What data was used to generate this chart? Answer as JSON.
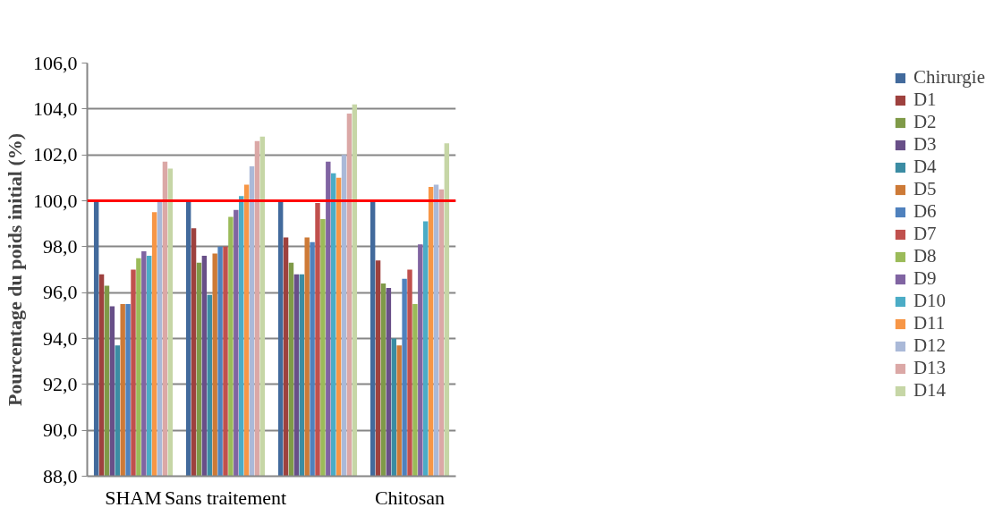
{
  "chart_data": {
    "type": "bar",
    "ylabel": "Pourcentage du poids initial (%)",
    "categories": [
      "SHAM",
      "Sans traitement",
      null,
      "Chitosan"
    ],
    "series": [
      {
        "name": "Chirurgie",
        "color": "#426a9c",
        "values": [
          100.0,
          100.0,
          100.0,
          100.0
        ]
      },
      {
        "name": "D1",
        "color": "#9e413e",
        "values": [
          96.8,
          98.8,
          98.4,
          97.4
        ]
      },
      {
        "name": "D2",
        "color": "#7f9a48",
        "values": [
          96.3,
          97.3,
          97.3,
          96.4
        ]
      },
      {
        "name": "D3",
        "color": "#684f88",
        "values": [
          95.4,
          97.6,
          96.8,
          96.2
        ]
      },
      {
        "name": "D4",
        "color": "#3b8ca3",
        "values": [
          93.7,
          95.9,
          96.8,
          94.0
        ]
      },
      {
        "name": "D5",
        "color": "#cd7a37",
        "values": [
          95.5,
          97.7,
          98.4,
          93.7
        ]
      },
      {
        "name": "D6",
        "color": "#4f81bd",
        "values": [
          95.5,
          98.0,
          98.2,
          96.6
        ]
      },
      {
        "name": "D7",
        "color": "#c0504d",
        "values": [
          97.0,
          98.0,
          99.9,
          97.0
        ]
      },
      {
        "name": "D8",
        "color": "#9bbb59",
        "values": [
          97.5,
          99.3,
          99.2,
          95.5
        ]
      },
      {
        "name": "D9",
        "color": "#8064a2",
        "values": [
          97.8,
          99.6,
          101.7,
          98.1
        ]
      },
      {
        "name": "D10",
        "color": "#4bacc6",
        "values": [
          97.6,
          100.2,
          101.2,
          99.1
        ]
      },
      {
        "name": "D11",
        "color": "#f79646",
        "values": [
          99.5,
          100.7,
          101.0,
          100.6
        ]
      },
      {
        "name": "D12",
        "color": "#aab9d8",
        "values": [
          100.0,
          101.5,
          102.0,
          100.7
        ]
      },
      {
        "name": "D13",
        "color": "#dba8a6",
        "values": [
          101.7,
          102.6,
          103.8,
          100.5
        ]
      },
      {
        "name": "D14",
        "color": "#c6d6a6",
        "values": [
          101.4,
          102.8,
          104.2,
          102.5
        ]
      }
    ],
    "ylim": [
      88,
      106
    ],
    "yticks": [
      {
        "value": 88,
        "label": "88,0"
      },
      {
        "value": 90,
        "label": "90,0"
      },
      {
        "value": 92,
        "label": "92,0"
      },
      {
        "value": 94,
        "label": "94,0"
      },
      {
        "value": 96,
        "label": "96,0"
      },
      {
        "value": 98,
        "label": "98,0"
      },
      {
        "value": 100,
        "label": "100,0"
      },
      {
        "value": 102,
        "label": "102,0"
      },
      {
        "value": 104,
        "label": "104,0"
      },
      {
        "value": 106,
        "label": "106,0"
      }
    ],
    "ref_lines": [
      {
        "axis": "y",
        "value": 100,
        "color": "#ff0000"
      }
    ],
    "grid": "y",
    "legend": "right"
  }
}
